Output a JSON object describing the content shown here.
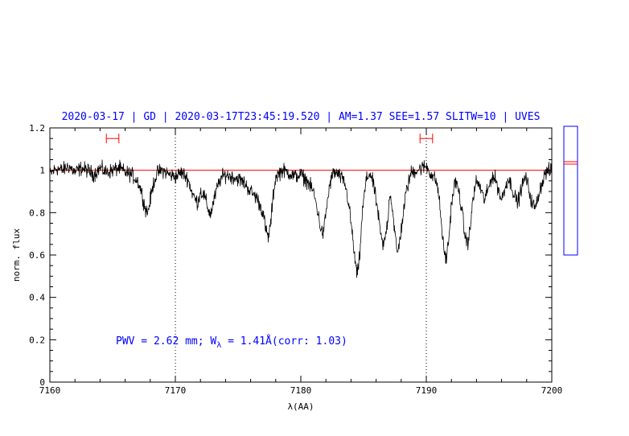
{
  "header": {
    "title": "2020-03-17 | GD | 2020-03-17T23:45:19.520 | AM=1.37 SEE=1.57 SLITW=10 | UVES"
  },
  "annotation": {
    "pwv_text": "PWV = 2.62 mm; W",
    "w_sub": "λ",
    "w_rest": " = 1.41Å(corr: 1.03)"
  },
  "colors": {
    "title": "#0000ff",
    "annotation": "#0000ff",
    "spectrum": "#000000",
    "continuum": "#ff0000",
    "markers": "#ff0000",
    "side_box": "#0000ff",
    "axes": "#000000"
  },
  "chart_data": {
    "type": "line",
    "title": "2020-03-17 | GD | 2020-03-17T23:45:19.520 | AM=1.37 SEE=1.57 SLITW=10 | UVES",
    "xlabel": "λ(AA)",
    "ylabel": "norm. flux",
    "xlim": [
      7160,
      7200
    ],
    "ylim": [
      0,
      1.2
    ],
    "xticks": [
      7160,
      7170,
      7180,
      7190,
      7200
    ],
    "xtick_labels": [
      "7160",
      "7170",
      "7180",
      "7190",
      "7200"
    ],
    "yticks": [
      0,
      0.2,
      0.4,
      0.6,
      0.8,
      1,
      1.2
    ],
    "ytick_labels": [
      "0",
      "0.2",
      "0.4",
      "0.6",
      "0.8",
      "1",
      "1.2"
    ],
    "continuum_level": 1.0,
    "vertical_dotted_lines": [
      7170,
      7190
    ],
    "continuum_windows": [
      {
        "x1": 7164.5,
        "x2": 7165.5,
        "y": 1.15
      },
      {
        "x1": 7189.5,
        "x2": 7190.5,
        "y": 1.15
      }
    ],
    "series": [
      {
        "x": [
          7160.0,
          7160.5,
          7161.0,
          7161.5,
          7162.0,
          7162.5,
          7163.0,
          7163.5,
          7164.0,
          7164.5,
          7165.0,
          7165.5,
          7166.0,
          7166.5,
          7167.0,
          7167.3,
          7167.6,
          7167.8,
          7168.0,
          7168.3,
          7168.6,
          7169.0,
          7169.5,
          7170.0,
          7170.5,
          7171.0,
          7171.3,
          7171.6,
          7171.8,
          7172.0,
          7172.3,
          7172.6,
          7172.8,
          7173.0,
          7173.3,
          7173.6,
          7174.0,
          7174.5,
          7175.0,
          7175.5,
          7176.0,
          7176.5,
          7177.0,
          7177.2,
          7177.4,
          7177.6,
          7177.8,
          7178.0,
          7178.5,
          7179.0,
          7179.5,
          7180.0,
          7180.5,
          7181.0,
          7181.3,
          7181.6,
          7181.8,
          7182.0,
          7182.3,
          7182.6,
          7183.0,
          7183.5,
          7183.8,
          7184.1,
          7184.3,
          7184.5,
          7184.7,
          7184.9,
          7185.2,
          7185.5,
          7185.8,
          7186.1,
          7186.4,
          7186.6,
          7186.9,
          7187.1,
          7187.3,
          7187.5,
          7187.7,
          7188.0,
          7188.4,
          7188.8,
          7189.2,
          7189.6,
          7190.0,
          7190.4,
          7190.8,
          7191.0,
          7191.2,
          7191.4,
          7191.6,
          7191.8,
          7192.0,
          7192.3,
          7192.6,
          7192.9,
          7193.1,
          7193.3,
          7193.5,
          7193.7,
          7194.0,
          7194.3,
          7194.6,
          7194.9,
          7195.2,
          7195.5,
          7195.8,
          7196.0,
          7196.2,
          7196.5,
          7196.8,
          7197.0,
          7197.3,
          7197.6,
          7197.9,
          7198.1,
          7198.4,
          7198.7,
          7199.0,
          7199.5,
          7200.0
        ],
        "y": [
          0.98,
          1.01,
          1.0,
          1.02,
          0.99,
          1.01,
          1.0,
          0.98,
          1.01,
          0.99,
          1.0,
          1.01,
          0.99,
          0.98,
          0.95,
          0.9,
          0.82,
          0.8,
          0.86,
          0.95,
          0.99,
          1.0,
          0.98,
          0.97,
          0.99,
          0.96,
          0.9,
          0.86,
          0.85,
          0.9,
          0.88,
          0.82,
          0.79,
          0.84,
          0.91,
          0.96,
          0.98,
          0.97,
          0.96,
          0.94,
          0.9,
          0.87,
          0.8,
          0.72,
          0.68,
          0.75,
          0.88,
          0.97,
          1.0,
          0.99,
          0.97,
          0.98,
          0.95,
          0.9,
          0.82,
          0.72,
          0.7,
          0.8,
          0.93,
          0.99,
          0.98,
          0.94,
          0.85,
          0.7,
          0.58,
          0.5,
          0.6,
          0.8,
          0.95,
          0.99,
          0.93,
          0.82,
          0.68,
          0.64,
          0.75,
          0.9,
          0.82,
          0.7,
          0.6,
          0.72,
          0.9,
          0.99,
          1.0,
          1.01,
          1.02,
          0.98,
          0.95,
          0.88,
          0.75,
          0.62,
          0.58,
          0.68,
          0.84,
          0.95,
          0.9,
          0.78,
          0.68,
          0.66,
          0.72,
          0.86,
          0.95,
          0.92,
          0.86,
          0.9,
          0.97,
          0.96,
          0.9,
          0.86,
          0.9,
          0.96,
          0.93,
          0.88,
          0.85,
          0.92,
          0.97,
          0.93,
          0.85,
          0.82,
          0.9,
          0.99,
          1.0
        ]
      }
    ]
  }
}
